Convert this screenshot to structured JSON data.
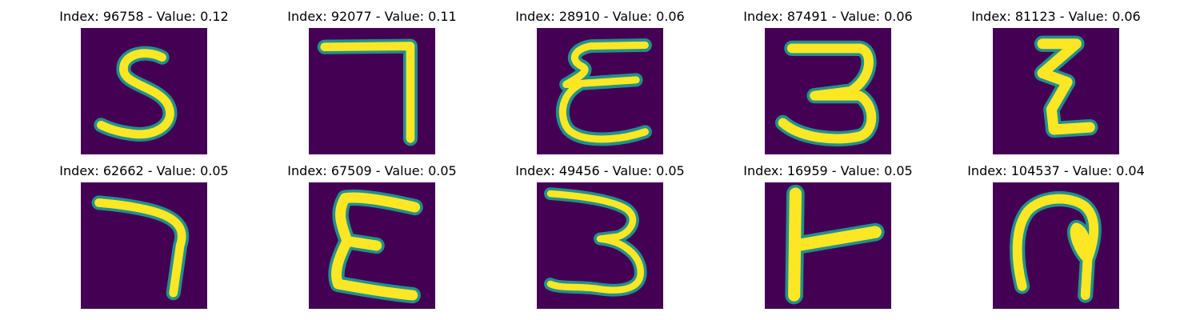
{
  "panels": [
    {
      "title": "Index: 96758 - Value: 0.12",
      "index": 96758,
      "value": 0.12,
      "glyph": "5"
    },
    {
      "title": "Index: 92077 - Value: 0.11",
      "index": 92077,
      "value": 0.11,
      "glyph": "7"
    },
    {
      "title": "Index: 28910 - Value: 0.06",
      "index": 28910,
      "value": 0.06,
      "glyph": "E"
    },
    {
      "title": "Index: 87491 - Value: 0.06",
      "index": 87491,
      "value": 0.06,
      "glyph": "3"
    },
    {
      "title": "Index: 81123 - Value: 0.06",
      "index": 81123,
      "value": 0.06,
      "glyph": "Z"
    },
    {
      "title": "Index: 62662 - Value: 0.05",
      "index": 62662,
      "value": 0.05,
      "glyph": "7"
    },
    {
      "title": "Index: 67509 - Value: 0.05",
      "index": 67509,
      "value": 0.05,
      "glyph": "E"
    },
    {
      "title": "Index: 49456 - Value: 0.05",
      "index": 49456,
      "value": 0.05,
      "glyph": "3"
    },
    {
      "title": "Index: 16959 - Value: 0.05",
      "index": 16959,
      "value": 0.05,
      "glyph": "T"
    },
    {
      "title": "Index: 104537 - Value: 0.04",
      "index": 104537,
      "value": 0.04,
      "glyph": "9"
    }
  ],
  "colors": {
    "background": "#440154",
    "stroke": "#fde725",
    "edge": "#21918c"
  }
}
